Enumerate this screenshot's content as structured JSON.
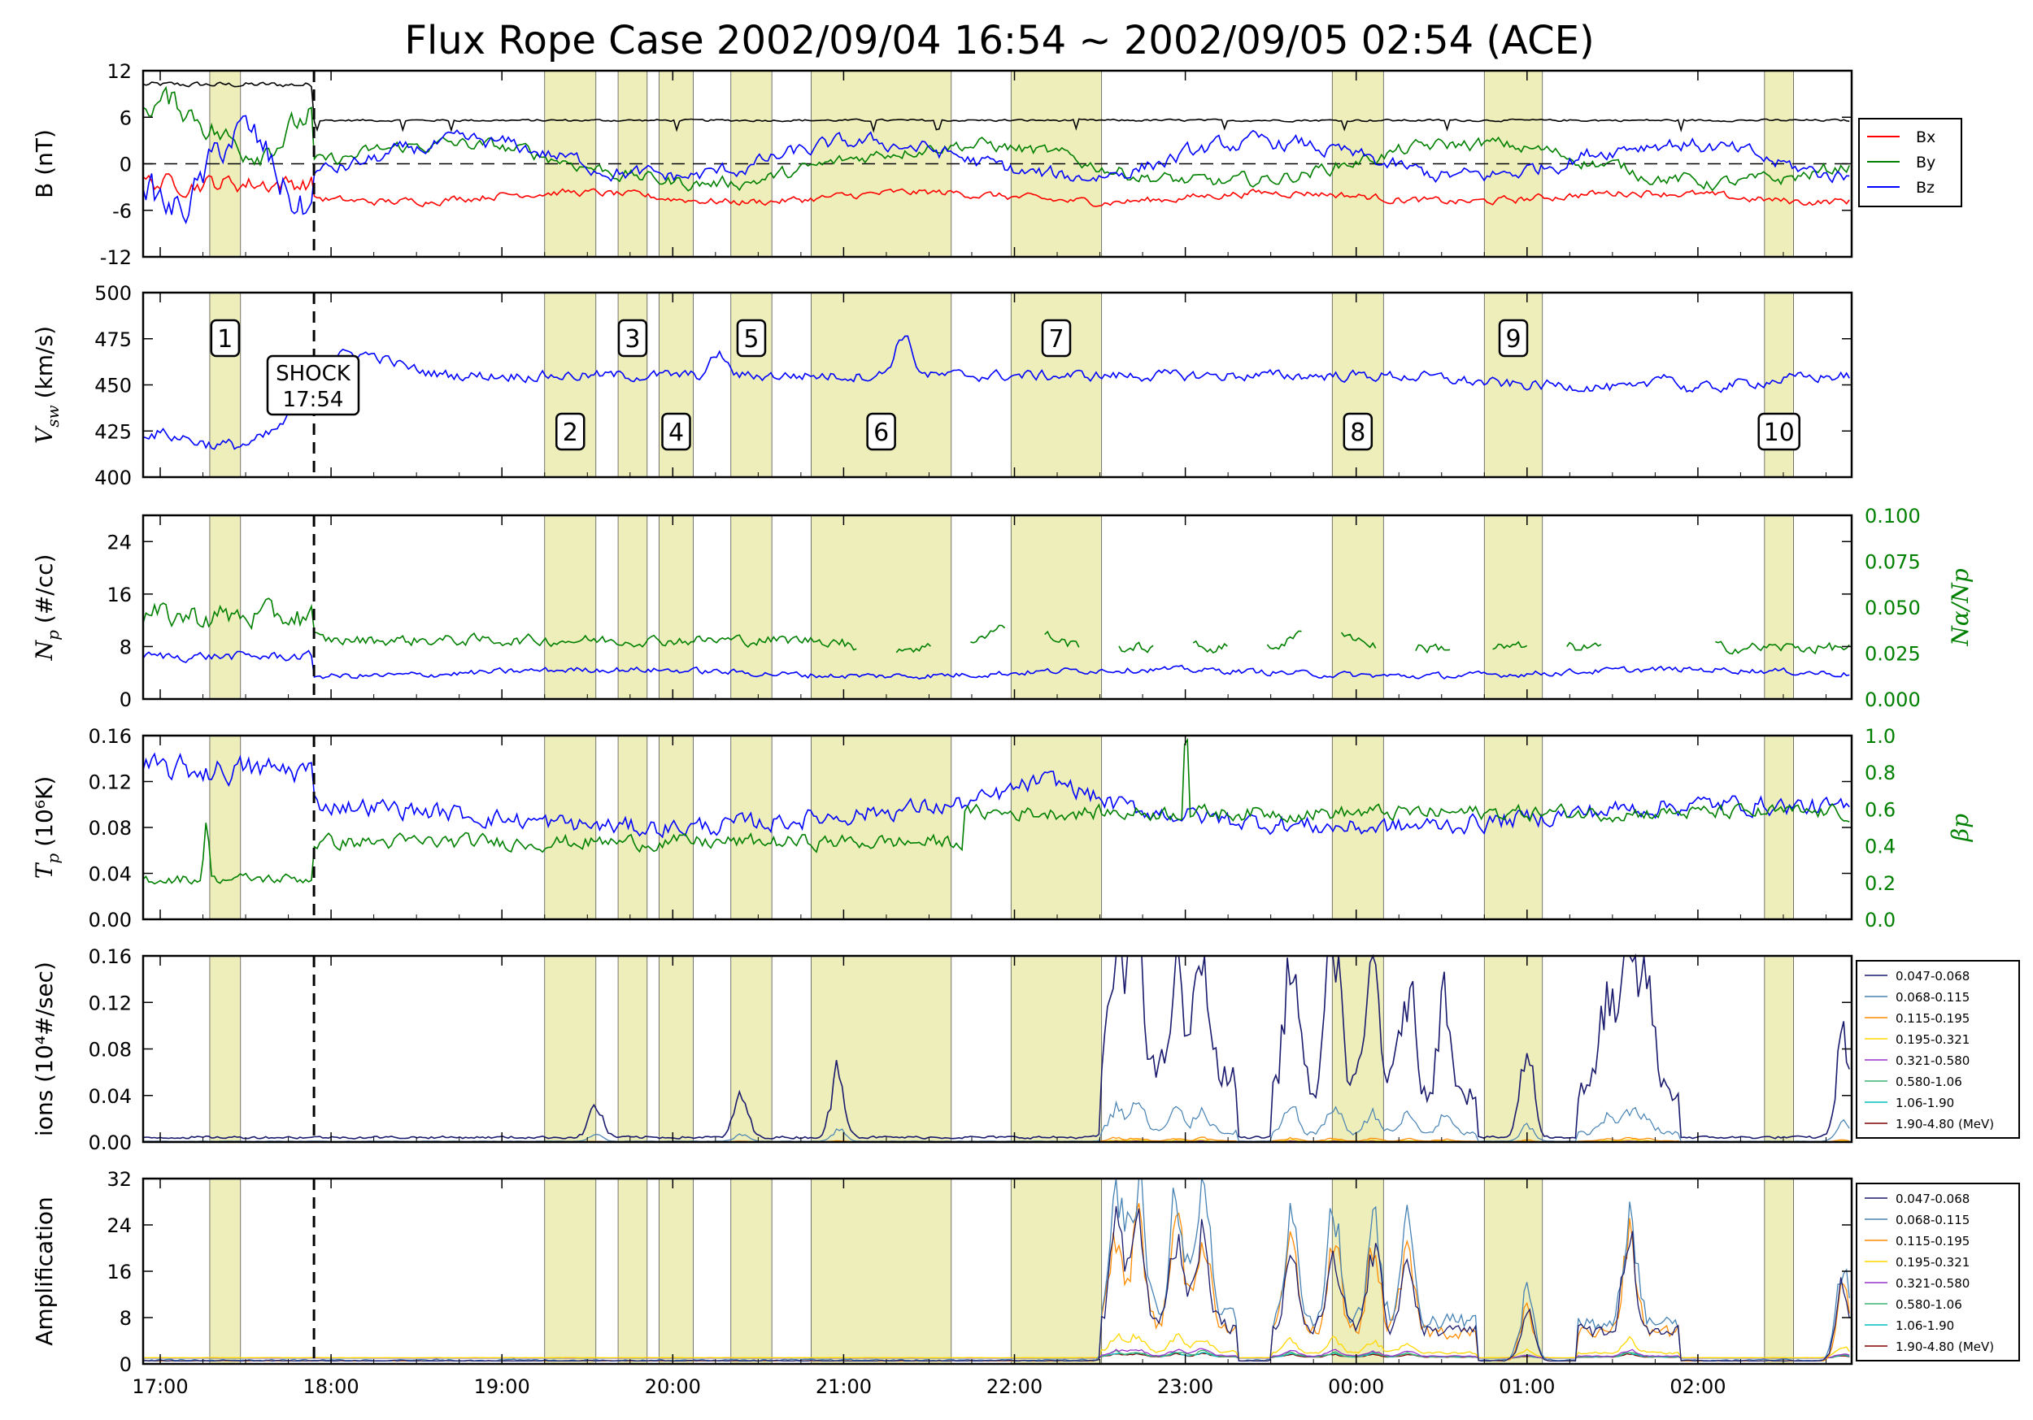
{
  "title": "Flux Rope Case 2002/09/04 16:54 ~ 2002/09/05 02:54 (ACE)",
  "colors": {
    "bx": "#ff0000",
    "by": "#008000",
    "bz": "#0000ff",
    "bt": "#000000",
    "band_fill": "#eeeebb",
    "axis": "#000000",
    "right_axis": "#008000",
    "ion_channels": [
      "#1a1a6e",
      "#4682b4",
      "#ff8c00",
      "#ffd700",
      "#9932cc",
      "#3cb371",
      "#00bfbf",
      "#800000"
    ]
  },
  "x_axis": {
    "range_hours": [
      16.9,
      26.9
    ],
    "ticks": [
      17,
      18,
      19,
      20,
      21,
      22,
      23,
      24,
      25,
      26
    ],
    "tick_labels": [
      "17:00",
      "18:00",
      "19:00",
      "20:00",
      "21:00",
      "22:00",
      "23:00",
      "00:00",
      "01:00",
      "02:00"
    ]
  },
  "shock": {
    "time_hours": 17.9,
    "label_line1": "SHOCK",
    "label_line2": "17:54"
  },
  "flux_rope_intervals": [
    {
      "label": "1",
      "start": 17.29,
      "end": 17.47,
      "label_row": "upper"
    },
    {
      "label": "2",
      "start": 19.25,
      "end": 19.55,
      "label_row": "lower"
    },
    {
      "label": "3",
      "start": 19.68,
      "end": 19.85,
      "label_row": "upper"
    },
    {
      "label": "4",
      "start": 19.92,
      "end": 20.12,
      "label_row": "lower"
    },
    {
      "label": "5",
      "start": 20.34,
      "end": 20.58,
      "label_row": "upper"
    },
    {
      "label": "6",
      "start": 20.81,
      "end": 21.63,
      "label_row": "lower"
    },
    {
      "label": "7",
      "start": 21.98,
      "end": 22.51,
      "label_row": "upper"
    },
    {
      "label": "8",
      "start": 23.86,
      "end": 24.16,
      "label_row": "lower"
    },
    {
      "label": "9",
      "start": 24.75,
      "end": 25.09,
      "label_row": "upper"
    },
    {
      "label": "10",
      "start": 26.39,
      "end": 26.56,
      "label_row": "lower"
    }
  ],
  "panels": {
    "b": {
      "ylabel": "B (nT)",
      "ylim": [
        -12,
        12
      ],
      "yticks": [
        -12,
        -6,
        0,
        6,
        12
      ],
      "legend": [
        "Bx",
        "By",
        "Bz"
      ]
    },
    "v": {
      "ylabel_main": "V",
      "ylabel_sub": "sw",
      "ylabel_unit": "(km/s)",
      "ylim": [
        400,
        500
      ],
      "yticks": [
        400,
        425,
        450,
        475,
        500
      ]
    },
    "n": {
      "ylabel_main": "N",
      "ylabel_sub": "p",
      "ylabel_unit": "(#/cc)",
      "ylim": [
        0,
        28
      ],
      "yticks": [
        0,
        8,
        16,
        24
      ],
      "right_ylabel": "Nα/Np",
      "right_ylim": [
        0,
        0.1
      ],
      "right_ticks": [
        "0.000",
        "0.025",
        "0.050",
        "0.075",
        "0.100"
      ]
    },
    "t": {
      "ylabel_main": "T",
      "ylabel_sub": "p",
      "ylabel_unit": "(10⁶K)",
      "ylim": [
        0,
        0.16
      ],
      "yticks": [
        "0.00",
        "0.04",
        "0.08",
        "0.12",
        "0.16"
      ],
      "right_ylabel": "βp",
      "right_ylim": [
        0,
        1
      ],
      "right_ticks": [
        "0.0",
        "0.2",
        "0.4",
        "0.6",
        "0.8",
        "1.0"
      ]
    },
    "ions": {
      "ylabel": "ions (10⁴#/sec)",
      "ylim": [
        0,
        0.16
      ],
      "yticks": [
        "0.00",
        "0.04",
        "0.08",
        "0.12",
        "0.16"
      ]
    },
    "amp": {
      "ylabel": "Amplification",
      "ylim": [
        0,
        32
      ],
      "yticks": [
        0,
        8,
        16,
        24,
        32
      ]
    }
  },
  "energy_legend": [
    "0.047-0.068",
    "0.068-0.115",
    "0.115-0.195",
    "0.195-0.321",
    "0.321-0.580",
    "0.580-1.06",
    "1.06-1.90",
    "1.90-4.80 (MeV)"
  ],
  "chart_data": {
    "type": "line",
    "title": "Flux Rope Case 2002/09/04 16:54 ~ 2002/09/05 02:54 (ACE)",
    "x_unit": "hours",
    "series_summary": {
      "Bt": {
        "before_shock": 10.2,
        "after_shock": 5.6
      },
      "Bx": {
        "before_shock": -2.5,
        "after_shock": -4.3
      },
      "By": {
        "before_shock": 5.0,
        "after_shock": 0.0
      },
      "Vsw": {
        "before_shock": 425,
        "after_shock": 455
      },
      "Np": {
        "before_shock": 6.5,
        "after_shock": 4.0
      },
      "Na_Np": {
        "before_shock": 0.045,
        "after_shock": 0.03
      },
      "Tp": {
        "before_shock": 0.13,
        "after_shock": 0.09
      },
      "beta_p": {
        "before_shock": 0.3,
        "after_shock": 0.55
      }
    },
    "ion_peaks_ch1": [
      {
        "t": 19.55,
        "v": 0.027
      },
      {
        "t": 20.4,
        "v": 0.036
      },
      {
        "t": 20.97,
        "v": 0.058
      },
      {
        "t": 22.6,
        "v": 0.118
      },
      {
        "t": 22.72,
        "v": 0.141
      },
      {
        "t": 22.95,
        "v": 0.098
      },
      {
        "t": 23.1,
        "v": 0.12
      },
      {
        "t": 23.62,
        "v": 0.12
      },
      {
        "t": 23.87,
        "v": 0.142
      },
      {
        "t": 24.1,
        "v": 0.108
      },
      {
        "t": 24.3,
        "v": 0.092
      },
      {
        "t": 24.52,
        "v": 0.082
      },
      {
        "t": 25.0,
        "v": 0.075
      },
      {
        "t": 25.47,
        "v": 0.082
      },
      {
        "t": 25.6,
        "v": 0.124
      },
      {
        "t": 25.7,
        "v": 0.095
      },
      {
        "t": 26.85,
        "v": 0.085
      }
    ],
    "amp_peaks_ch2": [
      {
        "t": 22.6,
        "v": 21
      },
      {
        "t": 22.72,
        "v": 24
      },
      {
        "t": 22.95,
        "v": 21
      },
      {
        "t": 23.1,
        "v": 24
      },
      {
        "t": 23.62,
        "v": 18
      },
      {
        "t": 23.87,
        "v": 20
      },
      {
        "t": 24.1,
        "v": 18
      },
      {
        "t": 24.3,
        "v": 17
      },
      {
        "t": 25.0,
        "v": 12
      },
      {
        "t": 25.6,
        "v": 22
      },
      {
        "t": 26.85,
        "v": 17
      }
    ]
  }
}
